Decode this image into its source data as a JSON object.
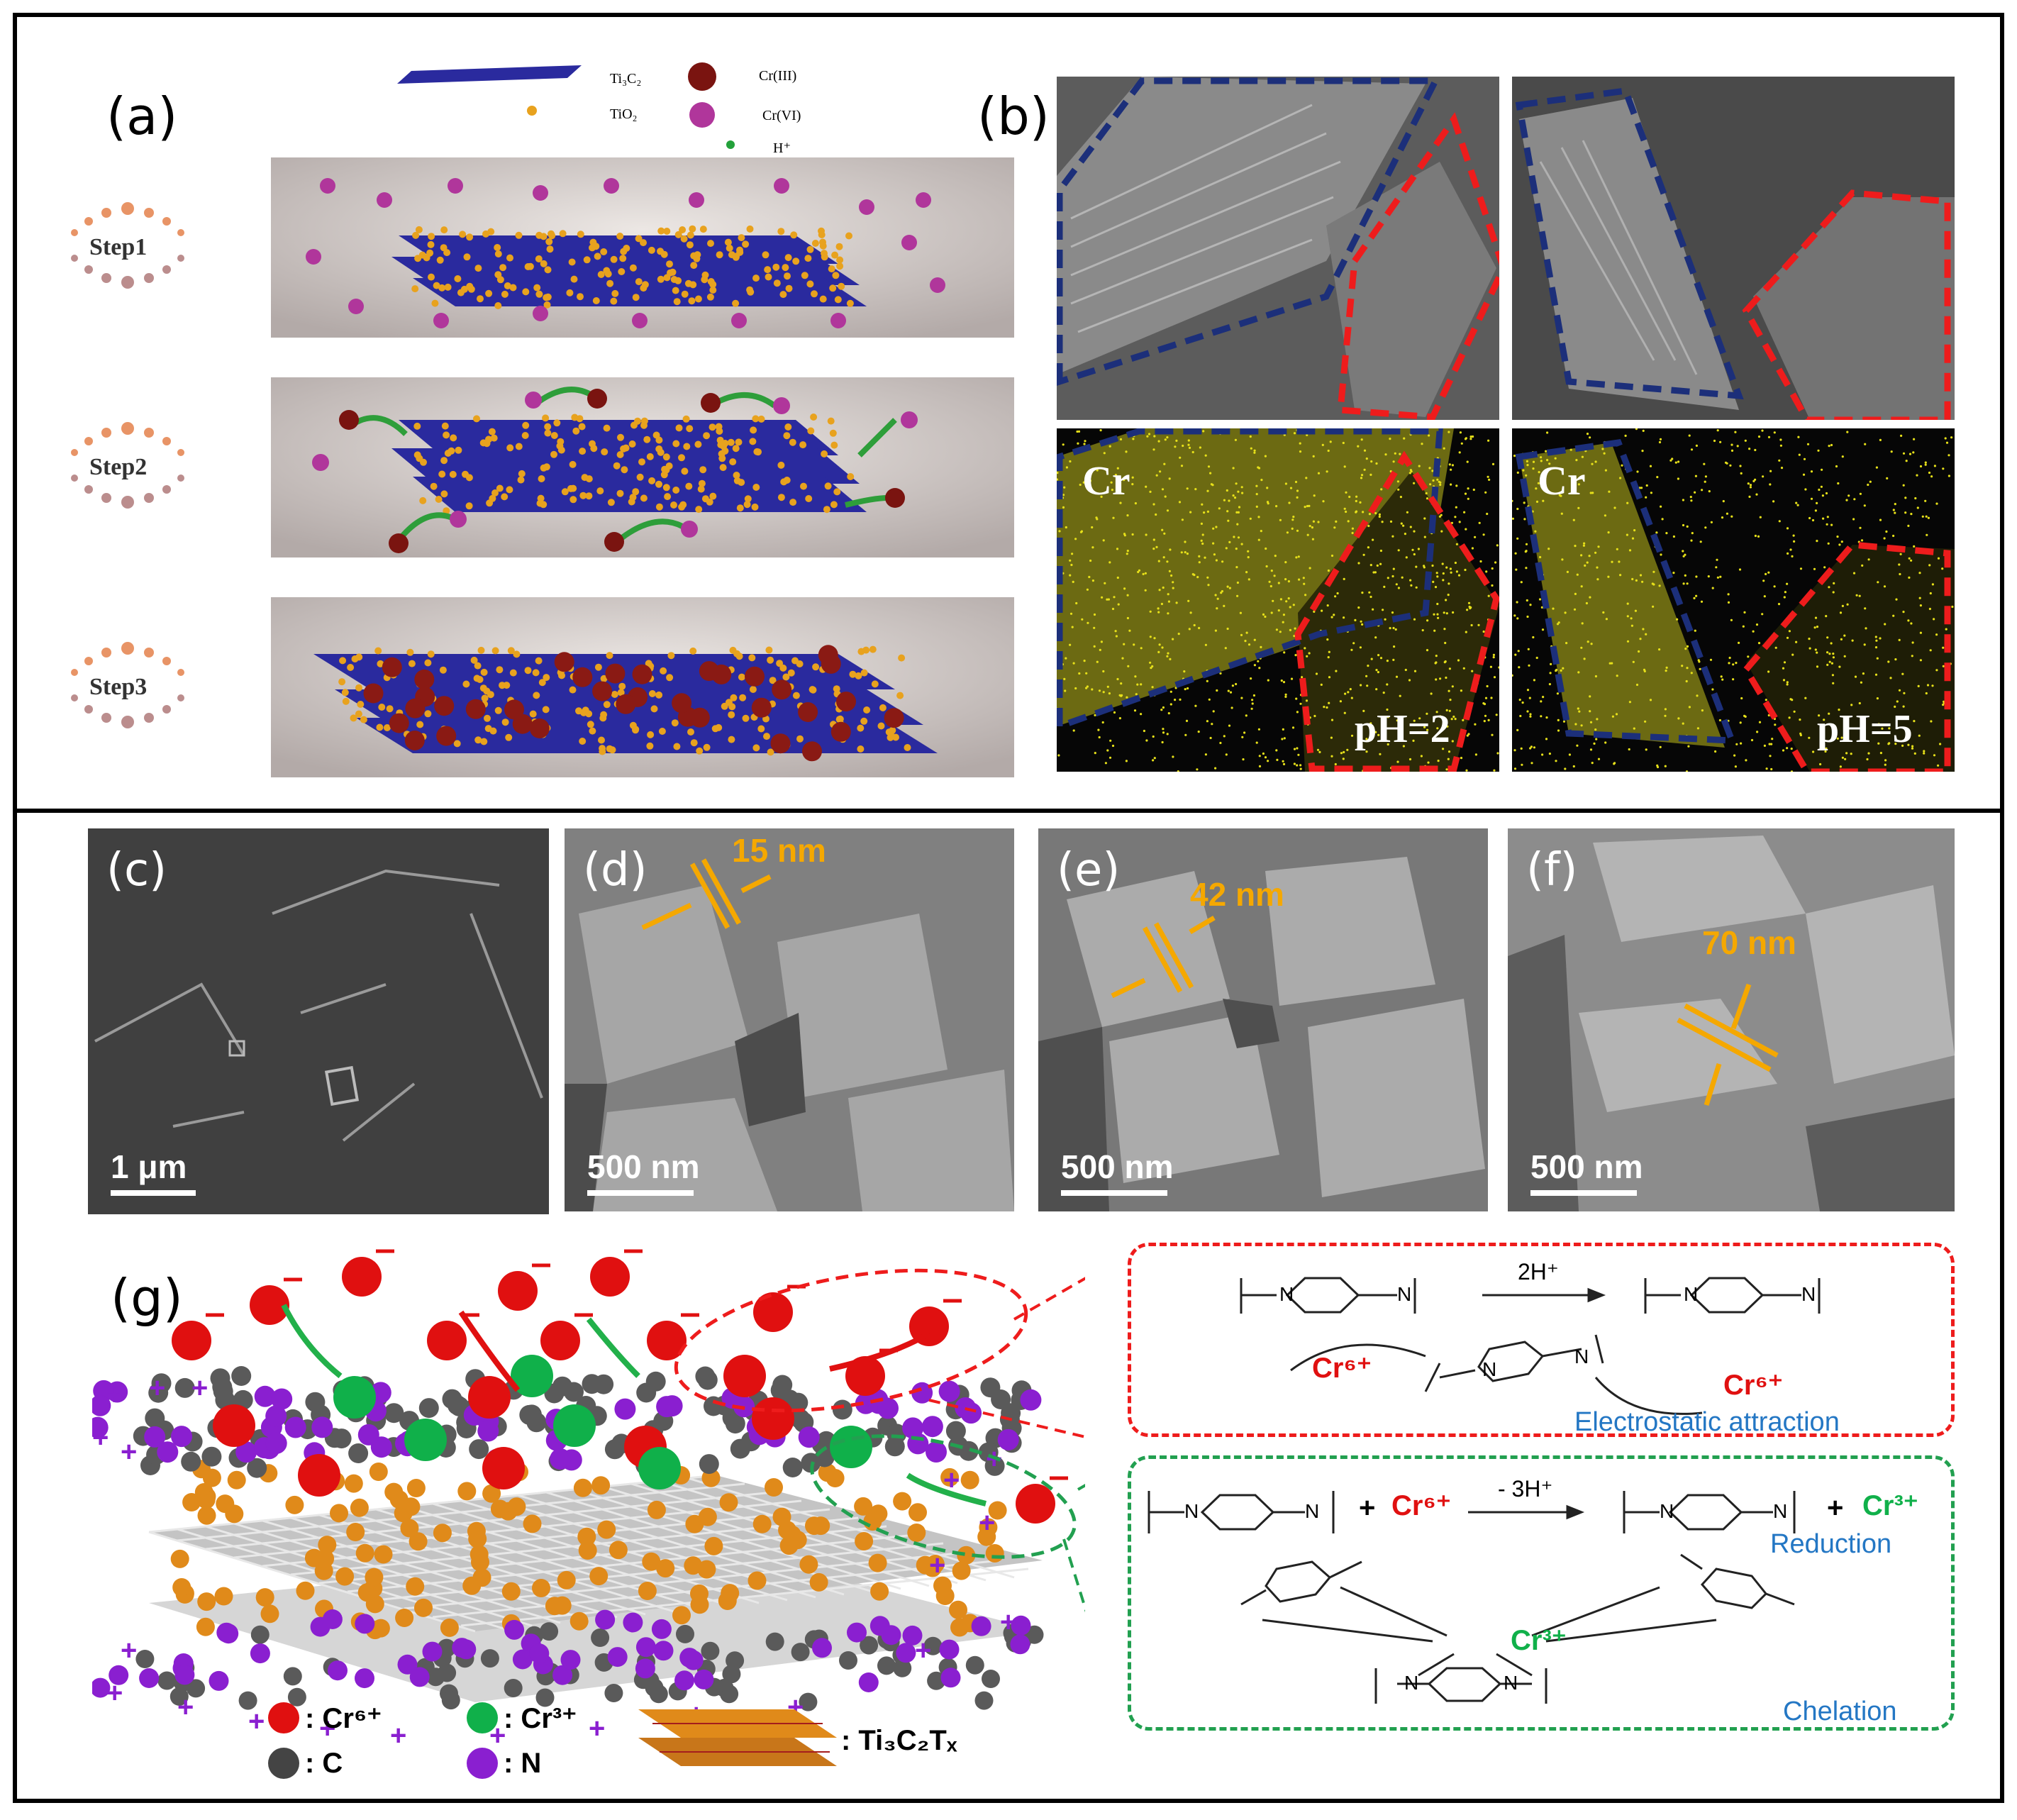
{
  "panels": {
    "a": {
      "label": "(a)"
    },
    "b": {
      "label": "(b)"
    },
    "c": {
      "label": "(c)"
    },
    "d": {
      "label": "(d)"
    },
    "e": {
      "label": "(e)"
    },
    "f": {
      "label": "(f)"
    },
    "g": {
      "label": "(g)"
    }
  },
  "top_legend": {
    "ti3c2": "Ti₃C₂",
    "tio2": "TiO₂",
    "cr3": "Cr(III)",
    "cr6": "Cr(VI)",
    "h": "H⁺"
  },
  "steps": [
    "Step1",
    "Step2",
    "Step3"
  ],
  "panel_b": {
    "element_label": "Cr",
    "ph_left": "pH=2",
    "ph_right": "pH=5"
  },
  "sem": {
    "c": {
      "scale": "1 μm"
    },
    "d": {
      "scale": "500 nm",
      "measure": "15 nm"
    },
    "e": {
      "scale": "500 nm",
      "measure": "42 nm"
    },
    "f": {
      "scale": "500 nm",
      "measure": "70 nm"
    }
  },
  "mechanism": {
    "reaction_1": "2H⁺",
    "reaction_2": "- 3H⁺",
    "cr6": "Cr⁶⁺",
    "cr3": "Cr³⁺",
    "plus": "+",
    "electrostatic": "Electrostatic attraction",
    "reduction": "Reduction",
    "chelation": "Chelation"
  },
  "legend_g": {
    "cr6": ": Cr⁶⁺",
    "cr3": ": Cr³⁺",
    "c": ": C",
    "n": ": N",
    "ti3c2tx": ": Ti₃C₂Tₓ"
  },
  "colors": {
    "mxene_sheet": "#2a2a9e",
    "tio2": "#e8a21e",
    "cr6_purple": "#b0369b",
    "cr3_darkred": "#7a1410",
    "cr6_red": "#e01010",
    "cr3_green": "#10b04a",
    "nitrogen": "#8a1fd0",
    "carbon": "#555555",
    "measure": "#f5a800",
    "dash_blue": "#1c2f7a",
    "dash_red": "#ee1c1c",
    "dash_green": "#22a050",
    "eds_yellow": "#e6e01a"
  }
}
